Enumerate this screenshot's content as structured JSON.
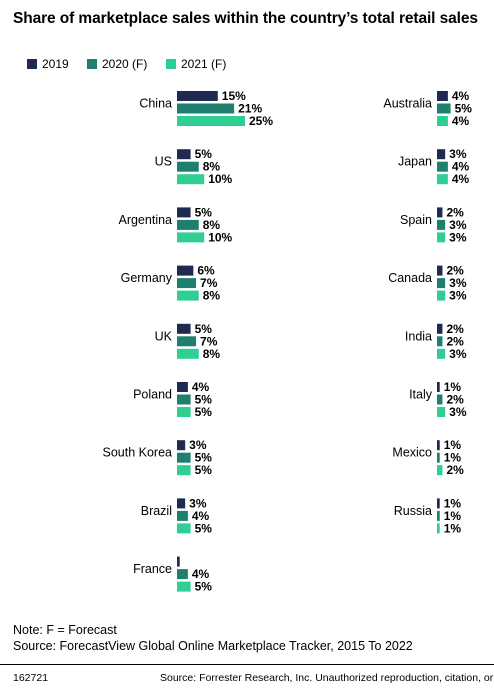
{
  "chart_data": {
    "type": "bar",
    "orientation": "horizontal",
    "title": "Share of marketplace sales within the country’s total retail sales",
    "legend": {
      "position": "top-left"
    },
    "series": [
      {
        "name": "2019",
        "color": "#1e2a52"
      },
      {
        "name": "2020 (F)",
        "color": "#1f7f6e"
      },
      {
        "name": "2021 (F)",
        "color": "#2fcf94"
      }
    ],
    "value_suffix": "%",
    "groups": [
      {
        "country": "China",
        "values": [
          15,
          21,
          25
        ]
      },
      {
        "country": "US",
        "values": [
          5,
          8,
          10
        ]
      },
      {
        "country": "Argentina",
        "values": [
          5,
          8,
          10
        ]
      },
      {
        "country": "Germany",
        "values": [
          6,
          7,
          8
        ]
      },
      {
        "country": "UK",
        "values": [
          5,
          7,
          8
        ]
      },
      {
        "country": "Poland",
        "values": [
          4,
          5,
          5
        ]
      },
      {
        "country": "South Korea",
        "values": [
          3,
          5,
          5
        ]
      },
      {
        "country": "Brazil",
        "values": [
          3,
          4,
          5
        ]
      },
      {
        "country": "France",
        "values": [
          1,
          4,
          5
        ],
        "labels": [
          "",
          "4%",
          "5%"
        ]
      },
      {
        "country": "Australia",
        "values": [
          4,
          5,
          4
        ]
      },
      {
        "country": "Japan",
        "values": [
          3,
          4,
          4
        ]
      },
      {
        "country": "Spain",
        "values": [
          2,
          3,
          3
        ]
      },
      {
        "country": "Canada",
        "values": [
          2,
          3,
          3
        ]
      },
      {
        "country": "India",
        "values": [
          2,
          2,
          3
        ]
      },
      {
        "country": "Italy",
        "values": [
          1,
          2,
          3
        ]
      },
      {
        "country": "Mexico",
        "values": [
          1,
          1,
          2
        ]
      },
      {
        "country": "Russia",
        "values": [
          1,
          1,
          1
        ]
      }
    ]
  },
  "note": "Note: F = Forecast",
  "source": "Source: ForecastView Global Online Marketplace Tracker, 2015 To 2022",
  "footer": {
    "id": "162721",
    "source": "Source: Forrester Research, Inc. Unauthorized reproduction, citation, or"
  }
}
